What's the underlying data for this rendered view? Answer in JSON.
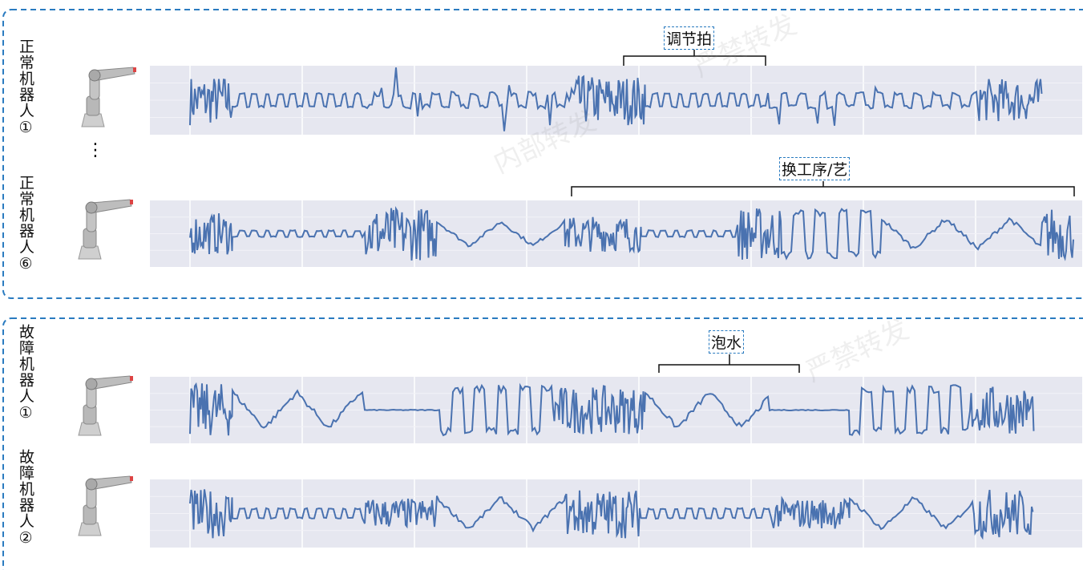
{
  "rows": [
    {
      "label": "正常机器人①"
    },
    {
      "label": "正常机器人⑥"
    },
    {
      "label": "故障机器人①"
    },
    {
      "label": "故障机器人②"
    }
  ],
  "ellipsis": "⋮",
  "annotations": [
    {
      "label": "调节拍"
    },
    {
      "label": "换工序/艺"
    },
    {
      "label": "泡水"
    }
  ],
  "watermarks": [
    "内部转发",
    "严禁转发"
  ]
}
